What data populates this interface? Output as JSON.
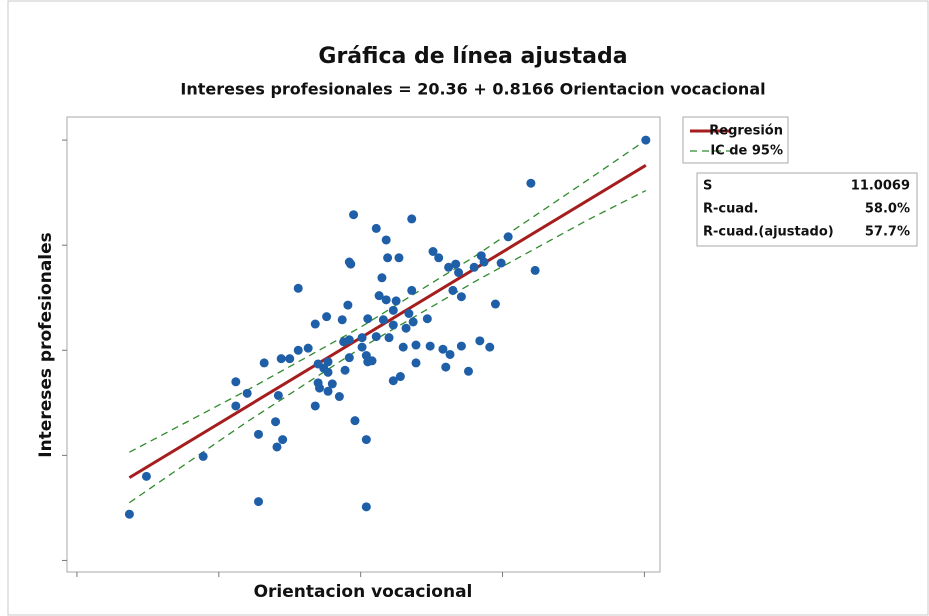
{
  "chart_data": {
    "type": "fitted_line",
    "title": "Gráfica de línea ajustada",
    "subtitle": "Intereses profesionales = 20.36 + 0.8166 Orientacion vocacional",
    "x_label": "Orientacion vocacional",
    "y_label": "Intereses profesionales",
    "xlim": [
      29.3,
      71.1
    ],
    "ylim": [
      38.9,
      82.2
    ],
    "xticks": [
      30,
      40,
      50,
      60,
      70
    ],
    "yticks": [
      40,
      50,
      60,
      70,
      80
    ],
    "points": {
      "color": "#1f5fa8",
      "x": [
        33.7,
        34.9,
        38.9,
        41.2,
        41.2,
        42.0,
        42.8,
        42.8,
        43.2,
        44.0,
        44.1,
        44.2,
        44.4,
        44.5,
        45.0,
        45.6,
        45.6,
        46.3,
        46.8,
        46.8,
        47.0,
        47.0,
        47.1,
        47.4,
        47.6,
        47.7,
        47.7,
        47.7,
        48.0,
        48.5,
        48.7,
        48.8,
        48.9,
        49.1,
        49.2,
        49.2,
        49.3,
        49.2,
        49.5,
        49.6,
        50.1,
        50.1,
        50.4,
        50.4,
        50.4,
        50.5,
        50.5,
        50.8,
        51.1,
        51.1,
        51.3,
        51.5,
        51.6,
        51.8,
        51.9,
        51.8,
        52.0,
        52.3,
        52.3,
        52.3,
        52.5,
        52.7,
        52.8,
        53.0,
        53.2,
        53.4,
        53.6,
        53.6,
        53.7,
        53.9,
        53.9,
        54.7,
        54.9,
        55.1,
        55.5,
        55.8,
        56.0,
        56.2,
        56.3,
        56.5,
        56.7,
        56.9,
        57.1,
        57.1,
        57.6,
        58.0,
        58.4,
        58.5,
        58.7,
        59.1,
        59.5,
        59.9,
        60.4,
        62.0,
        62.3,
        70.1
      ],
      "y": [
        44.4,
        48.0,
        49.9,
        57.0,
        54.7,
        55.9,
        52.0,
        45.6,
        58.8,
        53.2,
        50.8,
        55.7,
        59.2,
        51.5,
        59.2,
        65.9,
        60.0,
        60.2,
        62.5,
        54.7,
        56.9,
        58.7,
        56.4,
        58.3,
        63.2,
        57.9,
        56.1,
        58.9,
        56.8,
        55.6,
        62.9,
        60.8,
        58.1,
        64.3,
        61.0,
        59.3,
        68.2,
        68.4,
        72.9,
        53.3,
        60.3,
        61.2,
        59.5,
        51.5,
        45.1,
        63.0,
        58.9,
        59.0,
        71.6,
        61.3,
        65.2,
        66.9,
        62.9,
        70.5,
        68.8,
        64.8,
        61.2,
        62.4,
        57.1,
        63.8,
        64.7,
        68.8,
        57.5,
        60.3,
        62.1,
        63.5,
        72.5,
        65.7,
        62.7,
        60.5,
        58.8,
        63.0,
        60.4,
        69.4,
        68.8,
        60.1,
        58.4,
        67.9,
        59.6,
        65.7,
        68.2,
        67.4,
        60.4,
        65.1,
        58.0,
        67.9,
        60.9,
        69.0,
        68.4,
        60.3,
        64.4,
        68.3,
        70.8,
        75.9,
        67.6,
        80.0
      ]
    },
    "series": [
      {
        "name": "Regresión",
        "color": "#a51d1d",
        "x": [
          33.7,
          70.1
        ],
        "values": [
          47.88,
          77.6
        ]
      },
      {
        "name": "IC de 95%",
        "color": "#2e8b2e",
        "x": [
          33.7,
          42,
          50,
          58,
          66,
          70.1
        ],
        "upper": [
          50.3,
          56.2,
          62.2,
          68.9,
          76.2,
          80.0
        ],
        "lower": [
          45.5,
          53.2,
          60.2,
          66.5,
          72.4,
          75.2
        ]
      }
    ],
    "stats": [
      [
        "S",
        "11.0069"
      ],
      [
        "R-cuad.",
        "58.0%"
      ],
      [
        "R-cuad.(ajustado)",
        "57.7%"
      ]
    ]
  }
}
